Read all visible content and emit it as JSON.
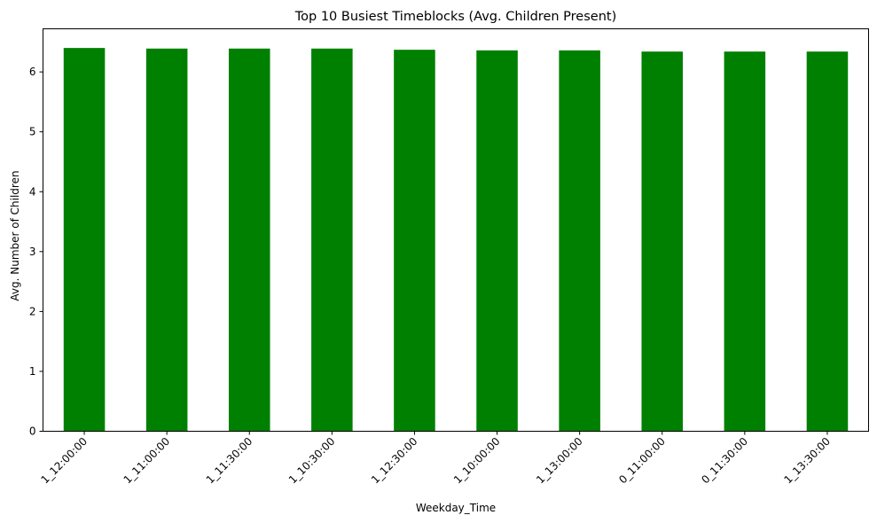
{
  "chart_data": {
    "type": "bar",
    "title": "Top 10 Busiest Timeblocks (Avg. Children Present)",
    "xlabel": "Weekday_Time",
    "ylabel": "Avg. Number of Children",
    "categories": [
      "1_12:00:00",
      "1_11:00:00",
      "1_11:30:00",
      "1_10:30:00",
      "1_12:30:00",
      "1_10:00:00",
      "1_13:00:00",
      "0_11:00:00",
      "0_11:30:00",
      "1_13:30:00"
    ],
    "values": [
      6.4,
      6.39,
      6.39,
      6.39,
      6.37,
      6.36,
      6.36,
      6.34,
      6.34,
      6.34
    ],
    "ylim": [
      0,
      6.72
    ],
    "yticks": [
      0,
      1,
      2,
      3,
      4,
      5,
      6
    ],
    "bar_color": "#008000",
    "grid": false,
    "legend": "none"
  }
}
